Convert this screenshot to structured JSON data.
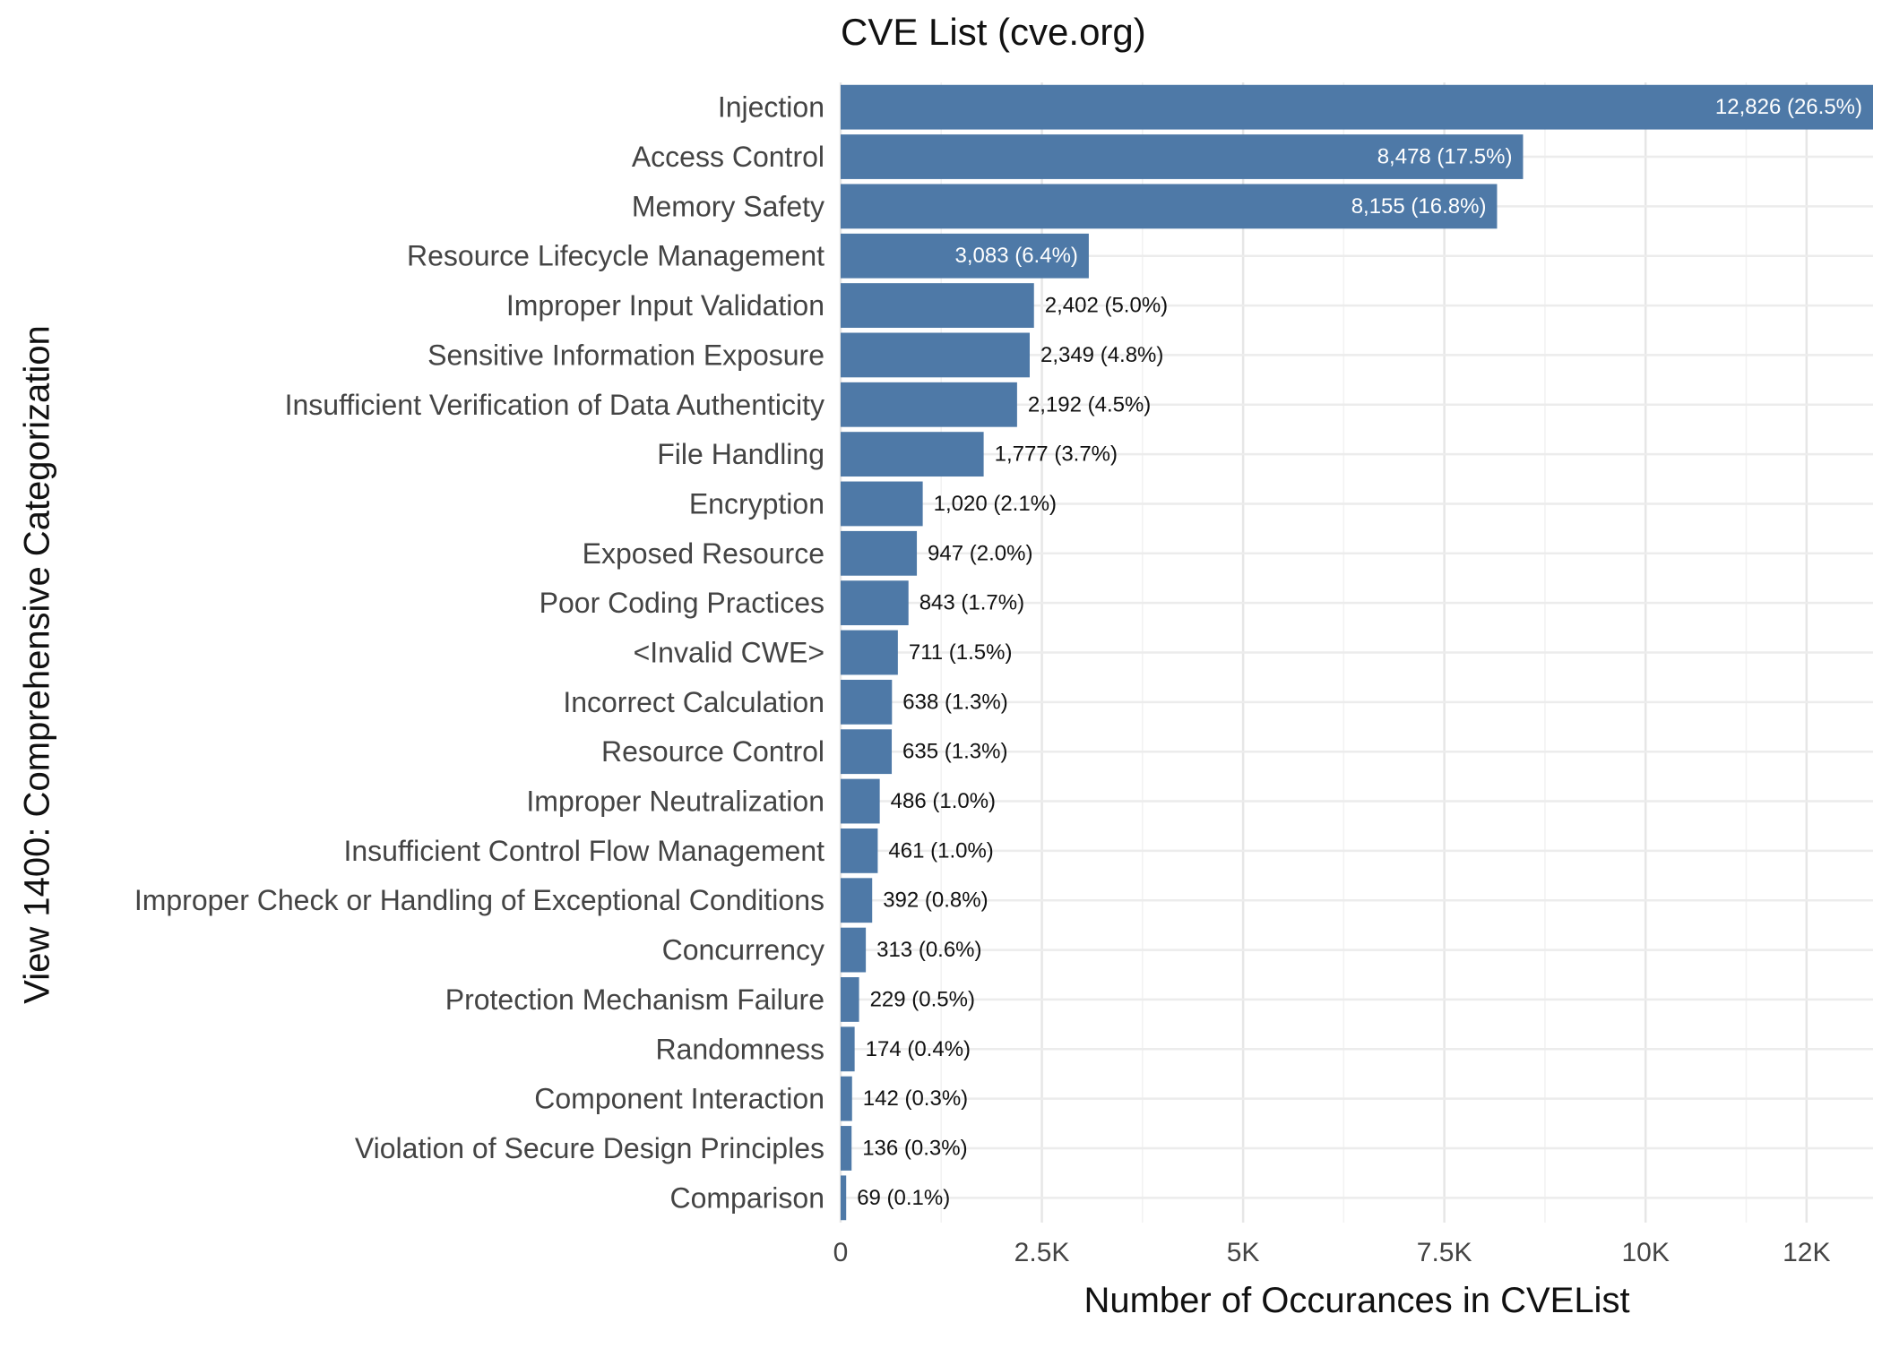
{
  "chart_data": {
    "type": "bar",
    "orientation": "horizontal",
    "title": "CVE List (cve.org)",
    "xlabel": "Number of Occurances in CVEList",
    "ylabel": "View 1400: Comprehensive Categorization",
    "xlim": [
      0,
      12826
    ],
    "xticks": [
      0,
      2500,
      5000,
      7500,
      10000,
      12000
    ],
    "xtick_labels": [
      "0",
      "2.5K",
      "5K",
      "7.5K",
      "10K",
      "12K"
    ],
    "grid": true,
    "legend": "none",
    "bar_color": "#4e79a7",
    "categories": [
      "Injection",
      "Access Control",
      "Memory Safety",
      "Resource Lifecycle Management",
      "Improper Input Validation",
      "Sensitive Information Exposure",
      "Insufficient Verification of Data Authenticity",
      "File Handling",
      "Encryption",
      "Exposed Resource",
      "Poor Coding Practices",
      "<Invalid CWE>",
      "Incorrect Calculation",
      "Resource Control",
      "Improper Neutralization",
      "Insufficient Control Flow Management",
      "Improper Check or Handling of Exceptional Conditions",
      "Concurrency",
      "Protection Mechanism Failure",
      "Randomness",
      "Component Interaction",
      "Violation of Secure Design Principles",
      "Comparison"
    ],
    "values": [
      12826,
      8478,
      8155,
      3083,
      2402,
      2349,
      2192,
      1777,
      1020,
      947,
      843,
      711,
      638,
      635,
      486,
      461,
      392,
      313,
      229,
      174,
      142,
      136,
      69
    ],
    "data_labels": [
      "12,826 (26.5%)",
      "8,478 (17.5%)",
      "8,155 (16.8%)",
      "3,083 (6.4%)",
      "2,402 (5.0%)",
      "2,349 (4.8%)",
      "2,192 (4.5%)",
      "1,777 (3.7%)",
      "1,020 (2.1%)",
      "947 (2.0%)",
      "843 (1.7%)",
      "711 (1.5%)",
      "638 (1.3%)",
      "635 (1.3%)",
      "486 (1.0%)",
      "461 (1.0%)",
      "392 (0.8%)",
      "313 (0.6%)",
      "229 (0.5%)",
      "174 (0.4%)",
      "142 (0.3%)",
      "136 (0.3%)",
      "69 (0.1%)"
    ]
  }
}
